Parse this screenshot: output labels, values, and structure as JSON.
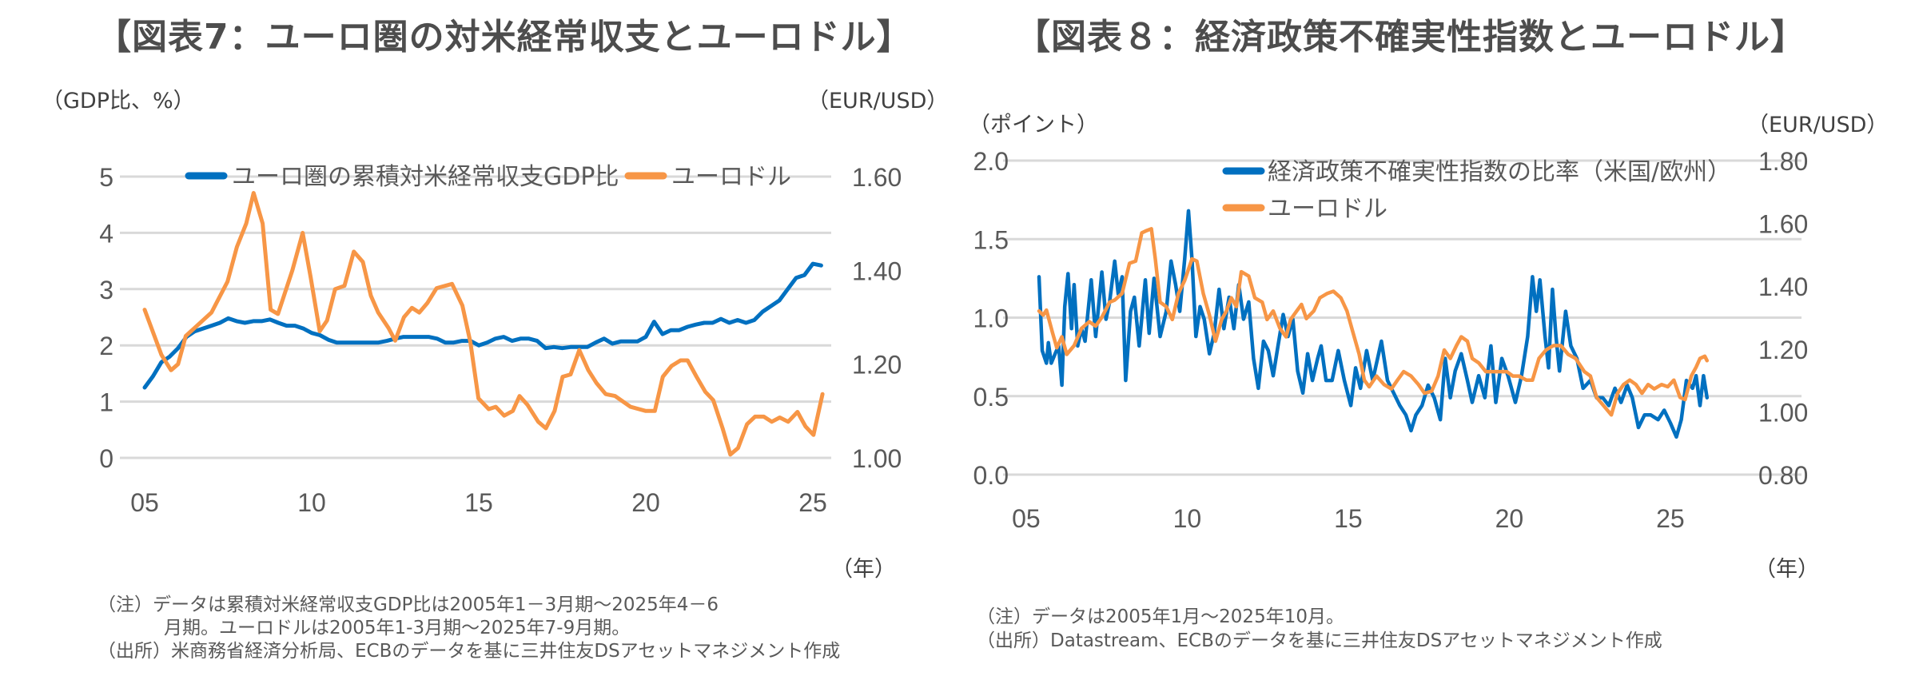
{
  "left": {
    "title": "【図表7：ユーロ圏の対米経常収支とユーロドル】",
    "left_unit": "（GDP比、%）",
    "right_unit": "（EUR/USD）",
    "x_unit": "（年）",
    "notes": [
      "（注）データは累積対米経常収支GDP比は2005年1－3月期～2025年4－6",
      "月期。ユーロドルは2005年1-3月期～2025年7-9月期。",
      "（出所）米商務省経済分析局、ECBのデータを基に三井住友DSアセットマネジメント作成"
    ]
  },
  "right": {
    "title": "【図表８：経済政策不確実性指数とユーロドル】",
    "left_unit": "（ポイント）",
    "right_unit": "（EUR/USD）",
    "x_unit": "（年）",
    "notes": [
      "（注）データは2005年1月～2025年10月。",
      "（出所）Datastream、ECBのデータを基に三井住友DSアセットマネジメント作成"
    ]
  },
  "chart_data": [
    {
      "type": "line",
      "grid": true,
      "legend": "top",
      "xlim": [
        2005,
        2025
      ],
      "x_ticks": [
        {
          "value": 2005,
          "label": "05"
        },
        {
          "value": 2010,
          "label": "10"
        },
        {
          "value": 2015,
          "label": "15"
        },
        {
          "value": 2020,
          "label": "20"
        },
        {
          "value": 2025,
          "label": "25"
        }
      ],
      "y_left": {
        "lim": [
          0,
          5
        ],
        "ticks": [
          "0",
          "1",
          "2",
          "3",
          "4",
          "5"
        ]
      },
      "y_right": {
        "lim": [
          1.0,
          1.6
        ],
        "ticks": [
          "1.00",
          "1.20",
          "1.40",
          "1.60"
        ]
      },
      "series": [
        {
          "name": "ユーロ圏の累積対米経常収支GDP比",
          "axis": "left",
          "color": "#0070C0",
          "x": [
            2005.0,
            2005.25,
            2005.5,
            2005.75,
            2006.0,
            2006.25,
            2006.5,
            2006.75,
            2007.0,
            2007.25,
            2007.5,
            2007.75,
            2008.0,
            2008.25,
            2008.5,
            2008.75,
            2009.0,
            2009.25,
            2009.5,
            2009.75,
            2010.0,
            2010.25,
            2010.5,
            2010.75,
            2011.0,
            2011.5,
            2012.0,
            2012.25,
            2012.5,
            2012.75,
            2013.0,
            2013.5,
            2013.75,
            2014.0,
            2014.25,
            2014.5,
            2014.75,
            2015.0,
            2015.25,
            2015.5,
            2015.75,
            2016.0,
            2016.25,
            2016.5,
            2016.75,
            2017.0,
            2017.25,
            2017.5,
            2017.75,
            2018.0,
            2018.25,
            2018.5,
            2018.75,
            2019.0,
            2019.25,
            2019.5,
            2019.75,
            2020.0,
            2020.25,
            2020.5,
            2020.75,
            2021.0,
            2021.25,
            2021.5,
            2021.75,
            2022.0,
            2022.25,
            2022.5,
            2022.75,
            2023.0,
            2023.25,
            2023.5,
            2023.75,
            2024.0,
            2024.25,
            2024.5,
            2024.75,
            2025.0,
            2025.25
          ],
          "y": [
            1.25,
            1.45,
            1.7,
            1.8,
            1.95,
            2.15,
            2.25,
            2.3,
            2.35,
            2.4,
            2.48,
            2.43,
            2.4,
            2.43,
            2.43,
            2.46,
            2.4,
            2.35,
            2.35,
            2.3,
            2.22,
            2.18,
            2.1,
            2.05,
            2.05,
            2.05,
            2.05,
            2.08,
            2.12,
            2.15,
            2.15,
            2.15,
            2.12,
            2.05,
            2.05,
            2.08,
            2.08,
            2.0,
            2.05,
            2.12,
            2.15,
            2.08,
            2.12,
            2.12,
            2.08,
            1.95,
            1.97,
            1.95,
            1.97,
            1.97,
            1.97,
            2.05,
            2.12,
            2.03,
            2.07,
            2.07,
            2.07,
            2.15,
            2.42,
            2.2,
            2.27,
            2.27,
            2.33,
            2.37,
            2.4,
            2.4,
            2.47,
            2.4,
            2.45,
            2.4,
            2.45,
            2.6,
            2.7,
            2.8,
            3.0,
            3.2,
            3.25,
            3.45,
            3.42
          ]
        },
        {
          "name": "ユーロドル",
          "axis": "right",
          "color": "#F79646",
          "x": [
            2005.0,
            2005.5,
            2005.79,
            2006.0,
            2006.23,
            2007.0,
            2007.48,
            2007.76,
            2008.04,
            2008.26,
            2008.53,
            2008.77,
            2008.99,
            2009.42,
            2009.73,
            2009.97,
            2010.24,
            2010.46,
            2010.7,
            2010.98,
            2011.26,
            2011.53,
            2011.77,
            2011.99,
            2012.3,
            2012.5,
            2012.76,
            2013.0,
            2013.22,
            2013.46,
            2013.74,
            2014.2,
            2014.51,
            2014.75,
            2014.99,
            2015.3,
            2015.51,
            2015.76,
            2016.02,
            2016.22,
            2016.46,
            2016.78,
            2017.01,
            2017.27,
            2017.51,
            2017.75,
            2018.01,
            2018.28,
            2018.52,
            2018.8,
            2019.08,
            2019.54,
            2020.0,
            2020.27,
            2020.51,
            2020.77,
            2021.04,
            2021.25,
            2021.52,
            2021.78,
            2022.02,
            2022.3,
            2022.53,
            2022.76,
            2023.03,
            2023.27,
            2023.53,
            2023.77,
            2024.01,
            2024.26,
            2024.54,
            2024.78,
            2025.02,
            2025.29
          ],
          "y": [
            1.316,
            1.22,
            1.187,
            1.2,
            1.26,
            1.31,
            1.376,
            1.45,
            1.5,
            1.565,
            1.5,
            1.316,
            1.307,
            1.4,
            1.48,
            1.385,
            1.27,
            1.293,
            1.36,
            1.367,
            1.44,
            1.418,
            1.346,
            1.31,
            1.277,
            1.25,
            1.3,
            1.32,
            1.31,
            1.33,
            1.362,
            1.371,
            1.325,
            1.247,
            1.127,
            1.104,
            1.109,
            1.09,
            1.1,
            1.132,
            1.113,
            1.077,
            1.063,
            1.1,
            1.173,
            1.178,
            1.23,
            1.187,
            1.16,
            1.136,
            1.132,
            1.109,
            1.1,
            1.1,
            1.173,
            1.196,
            1.208,
            1.208,
            1.173,
            1.141,
            1.123,
            1.063,
            1.007,
            1.021,
            1.072,
            1.088,
            1.088,
            1.077,
            1.086,
            1.077,
            1.098,
            1.067,
            1.049,
            1.136
          ]
        }
      ]
    },
    {
      "type": "line",
      "grid": true,
      "legend": "top",
      "x_ticks": [
        {
          "value": 2005,
          "label": "05"
        },
        {
          "value": 2010,
          "label": "10"
        },
        {
          "value": 2015,
          "label": "15"
        },
        {
          "value": 2020,
          "label": "20"
        },
        {
          "value": 2025,
          "label": "25"
        }
      ],
      "y_left": {
        "lim": [
          0,
          2.0
        ],
        "ticks": [
          "0.0",
          "0.5",
          "1.0",
          "1.5",
          "2.0"
        ]
      },
      "y_right": {
        "lim": [
          0.8,
          1.8
        ],
        "ticks": [
          "0.80",
          "1.00",
          "1.20",
          "1.40",
          "1.60",
          "1.80"
        ]
      },
      "series": [
        {
          "name": "経済政策不確実性指数の比率（米国/欧州）",
          "axis": "left",
          "color": "#0070C0",
          "x": [
            2005.0,
            2005.1,
            2005.23,
            2005.29,
            2005.38,
            2005.52,
            2005.61,
            2005.71,
            2005.8,
            2005.9,
            2006.01,
            2006.09,
            2006.2,
            2006.32,
            2006.43,
            2006.62,
            2006.76,
            2006.95,
            2007.08,
            2007.19,
            2007.35,
            2007.46,
            2007.58,
            2007.69,
            2007.84,
            2007.96,
            2008.11,
            2008.3,
            2008.42,
            2008.57,
            2008.76,
            2008.95,
            2009.1,
            2009.24,
            2009.37,
            2009.52,
            2009.64,
            2009.75,
            2009.87,
            2010.0,
            2010.13,
            2010.29,
            2010.44,
            2010.59,
            2010.74,
            2010.9,
            2011.05,
            2011.2,
            2011.35,
            2011.51,
            2011.66,
            2011.81,
            2011.97,
            2012.12,
            2012.27,
            2012.42,
            2012.58,
            2012.73,
            2012.88,
            2013.03,
            2013.19,
            2013.34,
            2013.49,
            2013.65,
            2013.76,
            2013.91,
            2014.1,
            2014.29,
            2014.48,
            2014.68,
            2014.83,
            2014.98,
            2015.17,
            2015.36,
            2015.63,
            2015.82,
            2016.01,
            2016.2,
            2016.39,
            2016.55,
            2016.7,
            2016.89,
            2017.08,
            2017.27,
            2017.46,
            2017.61,
            2017.77,
            2017.92,
            2018.11,
            2018.3,
            2018.45,
            2018.65,
            2018.84,
            2019.03,
            2019.18,
            2019.37,
            2019.56,
            2019.79,
            2019.98,
            2020.17,
            2020.32,
            2020.44,
            2020.55,
            2020.71,
            2020.82,
            2020.94,
            2021.05,
            2021.16,
            2021.35,
            2021.51,
            2021.7,
            2021.89,
            2022.12,
            2022.31,
            2022.5,
            2022.69,
            2022.88,
            2023.07,
            2023.26,
            2023.42,
            2023.61,
            2023.8,
            2023.99,
            2024.22,
            2024.41,
            2024.6,
            2024.79,
            2024.94,
            2025.1,
            2025.29,
            2025.4,
            2025.52,
            2025.63,
            2025.74
          ],
          "y": [
            1.26,
            0.79,
            0.71,
            0.84,
            0.71,
            0.78,
            0.82,
            0.57,
            1.07,
            1.28,
            0.93,
            1.21,
            0.82,
            0.93,
            0.85,
            1.24,
            0.88,
            1.29,
            0.99,
            1.1,
            1.36,
            1.15,
            1.26,
            0.6,
            1.04,
            1.13,
            0.82,
            1.24,
            0.9,
            1.25,
            0.88,
            1.04,
            1.36,
            1.21,
            1.04,
            1.37,
            1.68,
            1.37,
            0.88,
            1.07,
            0.99,
            0.77,
            0.9,
            1.18,
            0.93,
            1.13,
            0.93,
            1.21,
            0.99,
            1.1,
            0.74,
            0.55,
            0.85,
            0.79,
            0.63,
            0.82,
            1.02,
            0.88,
            0.99,
            0.66,
            0.52,
            0.77,
            0.6,
            0.74,
            0.82,
            0.6,
            0.6,
            0.79,
            0.6,
            0.44,
            0.68,
            0.55,
            0.79,
            0.6,
            0.85,
            0.6,
            0.52,
            0.44,
            0.38,
            0.28,
            0.38,
            0.44,
            0.57,
            0.49,
            0.35,
            0.74,
            0.49,
            0.66,
            0.77,
            0.6,
            0.46,
            0.63,
            0.49,
            0.82,
            0.46,
            0.74,
            0.63,
            0.46,
            0.63,
            0.88,
            1.26,
            1.04,
            1.24,
            0.88,
            0.68,
            1.18,
            0.88,
            0.66,
            1.04,
            0.82,
            0.74,
            0.55,
            0.6,
            0.49,
            0.49,
            0.44,
            0.55,
            0.46,
            0.57,
            0.49,
            0.3,
            0.38,
            0.38,
            0.35,
            0.41,
            0.33,
            0.24,
            0.35,
            0.6,
            0.55,
            0.63,
            0.44,
            0.63,
            0.49
          ]
        },
        {
          "name": "ユーロドル",
          "axis": "right",
          "color": "#F79646",
          "x": [
            2005.0,
            2005.13,
            2005.23,
            2005.42,
            2005.55,
            2005.71,
            2005.86,
            2006.09,
            2006.32,
            2006.56,
            2006.76,
            2006.95,
            2007.19,
            2007.35,
            2007.58,
            2007.81,
            2008.0,
            2008.19,
            2008.34,
            2008.49,
            2008.61,
            2008.76,
            2008.95,
            2009.14,
            2009.33,
            2009.52,
            2009.75,
            2009.9,
            2010.1,
            2010.29,
            2010.48,
            2010.67,
            2010.82,
            2010.97,
            2011.13,
            2011.28,
            2011.51,
            2011.7,
            2011.93,
            2012.08,
            2012.27,
            2012.48,
            2012.67,
            2012.81,
            2013.0,
            2013.15,
            2013.3,
            2013.53,
            2013.72,
            2013.95,
            2014.14,
            2014.37,
            2014.56,
            2014.75,
            2014.94,
            2015.1,
            2015.25,
            2015.48,
            2015.71,
            2015.94,
            2016.13,
            2016.32,
            2016.55,
            2016.78,
            2016.97,
            2017.19,
            2017.39,
            2017.58,
            2017.77,
            2017.96,
            2018.11,
            2018.3,
            2018.45,
            2018.65,
            2018.87,
            2019.1,
            2019.33,
            2019.52,
            2019.71,
            2019.9,
            2020.13,
            2020.32,
            2020.52,
            2020.74,
            2020.97,
            2021.2,
            2021.43,
            2021.66,
            2021.93,
            2022.12,
            2022.31,
            2022.54,
            2022.77,
            2022.96,
            2023.15,
            2023.34,
            2023.53,
            2023.72,
            2023.91,
            2024.1,
            2024.33,
            2024.52,
            2024.71,
            2024.9,
            2025.06,
            2025.25,
            2025.4,
            2025.52,
            2025.67,
            2025.74
          ],
          "y": [
            1.321,
            1.308,
            1.324,
            1.252,
            1.204,
            1.239,
            1.183,
            1.211,
            1.266,
            1.287,
            1.273,
            1.301,
            1.349,
            1.356,
            1.377,
            1.473,
            1.48,
            1.57,
            1.577,
            1.583,
            1.487,
            1.349,
            1.335,
            1.294,
            1.377,
            1.418,
            1.487,
            1.48,
            1.377,
            1.308,
            1.225,
            1.294,
            1.321,
            1.363,
            1.335,
            1.446,
            1.432,
            1.363,
            1.349,
            1.294,
            1.321,
            1.266,
            1.239,
            1.294,
            1.321,
            1.342,
            1.297,
            1.321,
            1.363,
            1.377,
            1.384,
            1.363,
            1.321,
            1.252,
            1.183,
            1.101,
            1.08,
            1.114,
            1.087,
            1.073,
            1.101,
            1.128,
            1.114,
            1.087,
            1.059,
            1.066,
            1.114,
            1.197,
            1.17,
            1.211,
            1.239,
            1.225,
            1.17,
            1.156,
            1.128,
            1.128,
            1.128,
            1.128,
            1.114,
            1.114,
            1.101,
            1.101,
            1.17,
            1.197,
            1.211,
            1.211,
            1.183,
            1.17,
            1.128,
            1.114,
            1.046,
            1.018,
            0.99,
            1.059,
            1.087,
            1.101,
            1.087,
            1.059,
            1.087,
            1.073,
            1.087,
            1.08,
            1.101,
            1.046,
            1.039,
            1.114,
            1.142,
            1.17,
            1.177,
            1.163
          ]
        }
      ]
    }
  ]
}
